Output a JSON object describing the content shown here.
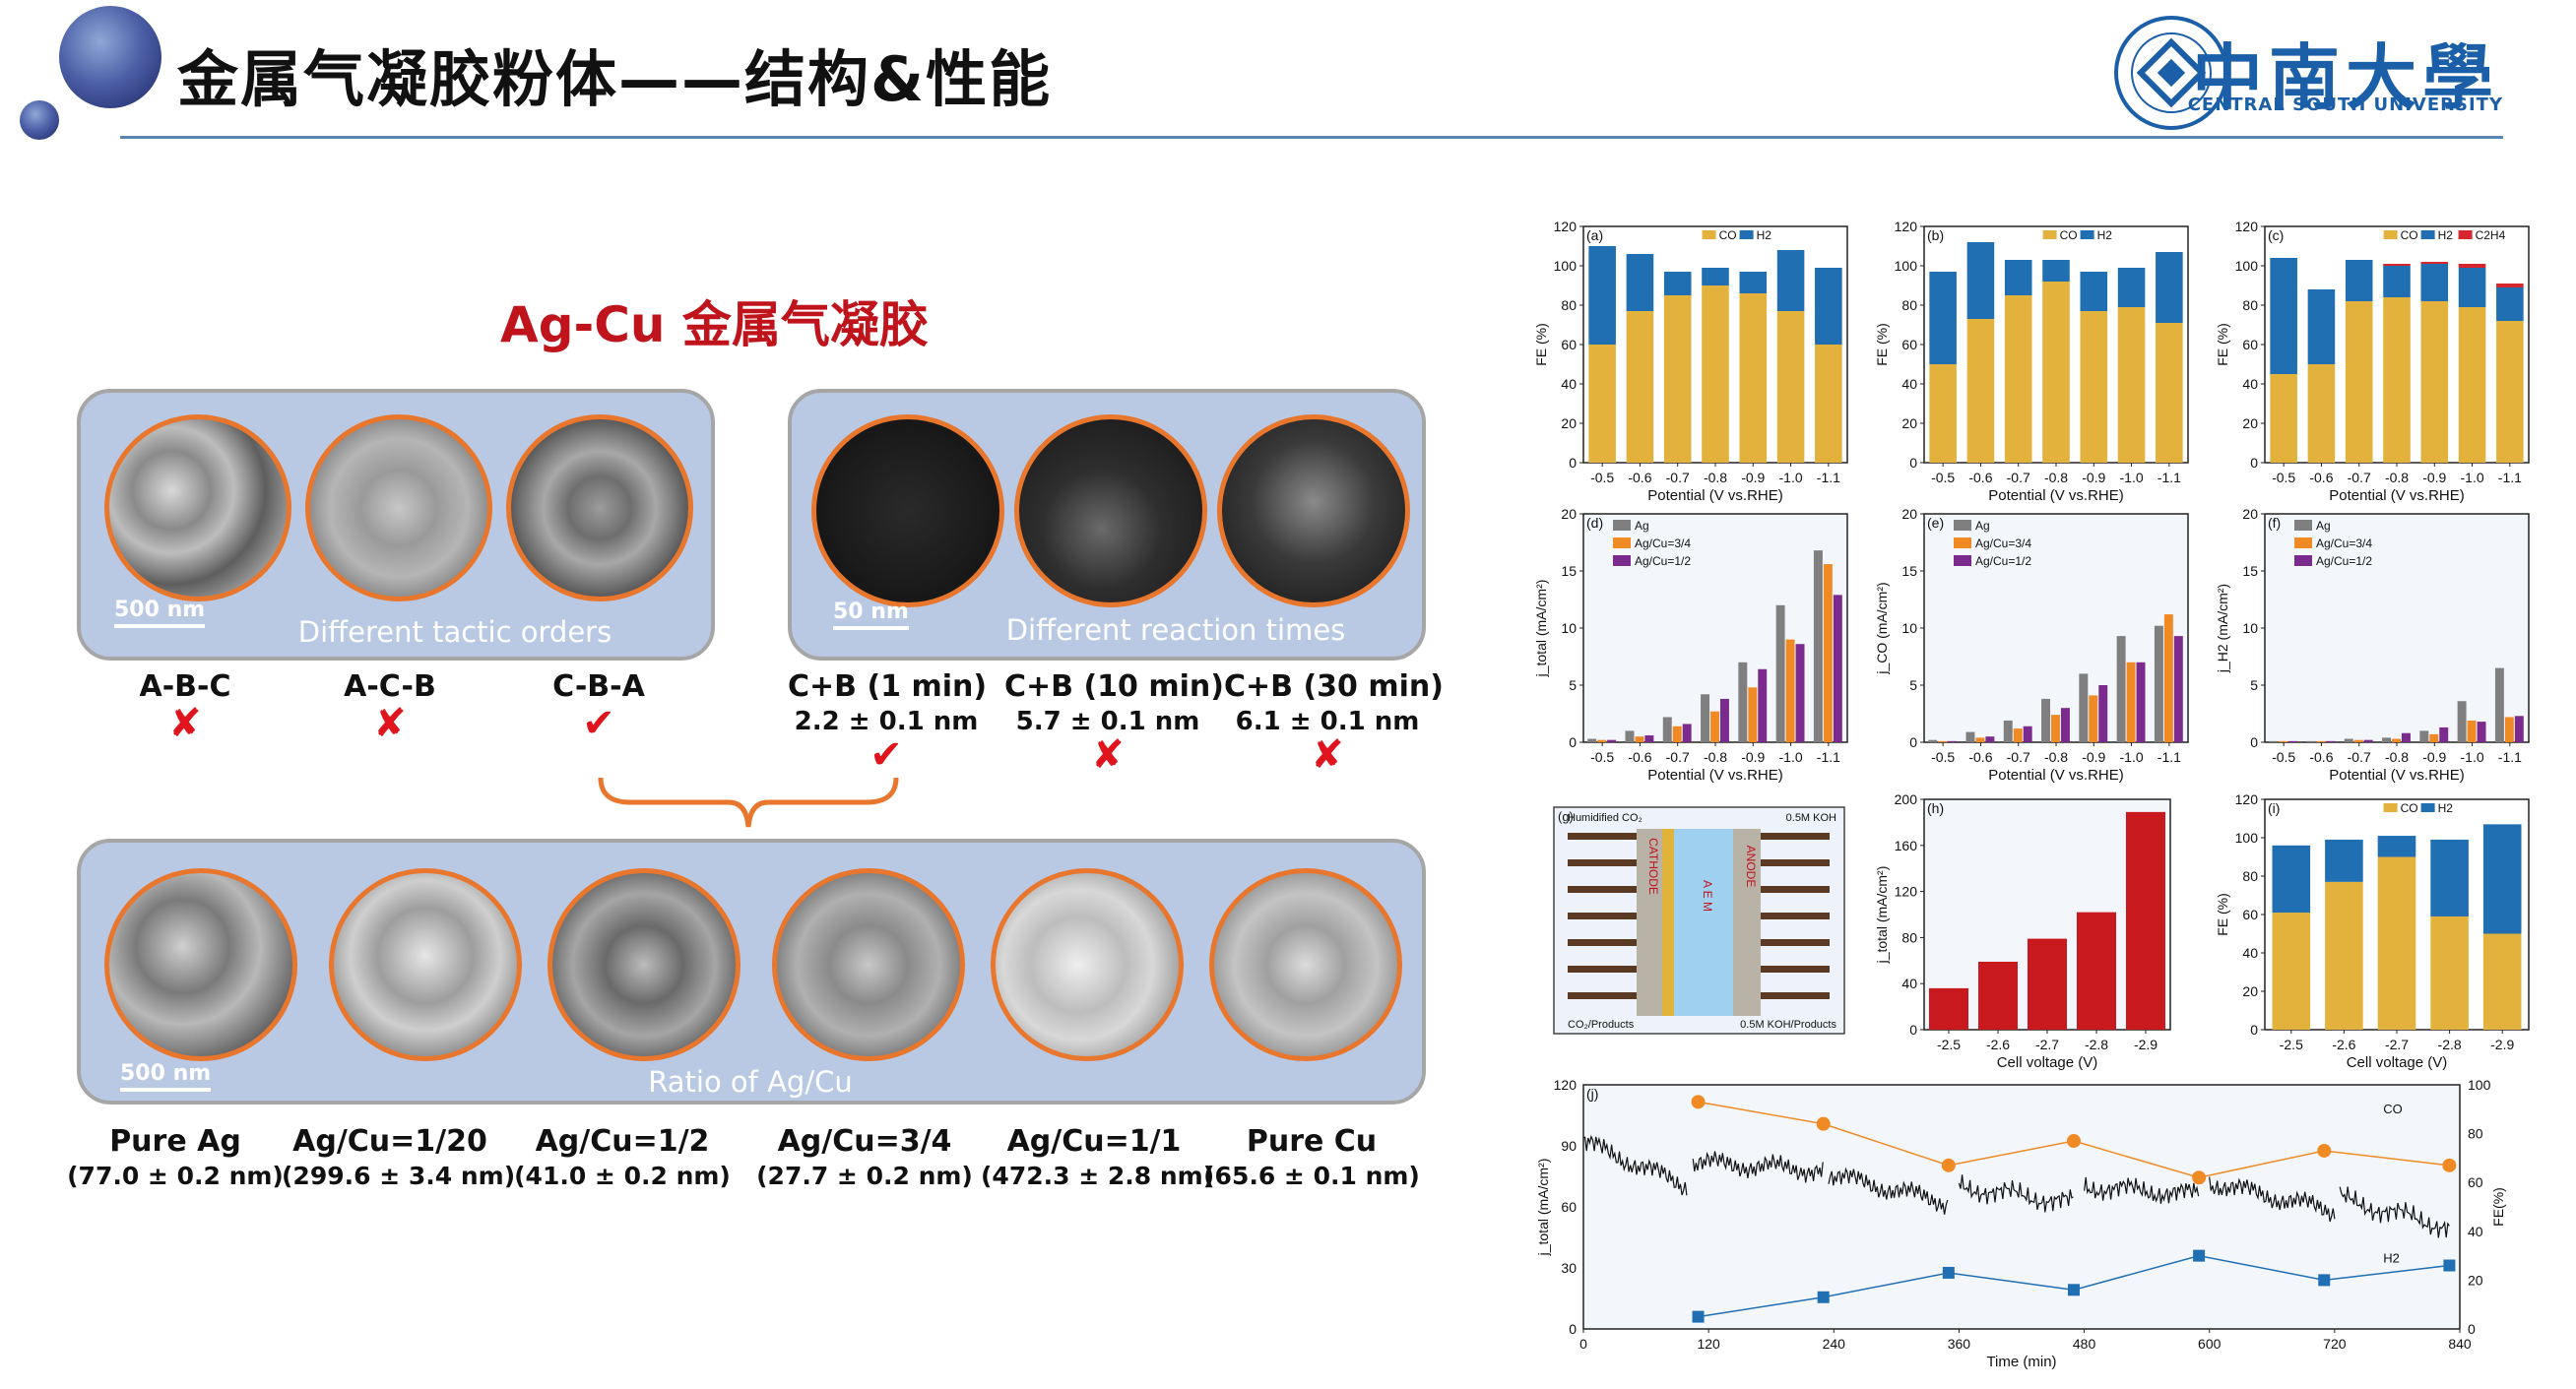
{
  "header": {
    "title": "金属气凝胶粉体——结构&性能",
    "university_name": "中南大學",
    "university_en": "CENTRAL SOUTH UNIVERSITY"
  },
  "subtitle": "Ag-Cu 金属气凝胶",
  "top_left_panel": {
    "label": "Different tactic orders",
    "scale": "500 nm"
  },
  "top_right_panel": {
    "label": "Different reaction times",
    "scale": "50 nm"
  },
  "bottom_panel": {
    "label": "Ratio of Ag/Cu",
    "scale": "500 nm"
  },
  "tactic_orders": [
    {
      "name": "A-B-C",
      "mark": "✘"
    },
    {
      "name": "A-C-B",
      "mark": "✘"
    },
    {
      "name": "C-B-A",
      "mark": "✔"
    }
  ],
  "reaction_times": [
    {
      "name": "C+B (1 min)",
      "value": "2.2 ± 0.1 nm",
      "mark": "✔"
    },
    {
      "name": "C+B (10 min)",
      "value": "5.7 ± 0.1 nm",
      "mark": "✘"
    },
    {
      "name": "C+B (30 min)",
      "value": "6.1 ± 0.1 nm",
      "mark": "✘"
    }
  ],
  "ratios": [
    {
      "name": "Pure Ag",
      "size": "(77.0 ± 0.2 nm)"
    },
    {
      "name": "Ag/Cu=1/20",
      "size": "(299.6 ± 3.4 nm)"
    },
    {
      "name": "Ag/Cu=1/2",
      "size": "(41.0 ± 0.2 nm)"
    },
    {
      "name": "Ag/Cu=3/4",
      "size": "(27.7 ± 0.2 nm)"
    },
    {
      "name": "Ag/Cu=1/1",
      "size": "(472.3 ± 2.8 nm)"
    },
    {
      "name": "Pure Cu",
      "size": "(65.6 ± 0.1 nm)"
    }
  ],
  "colors": {
    "CO": "#e3b23c",
    "H2": "#1f6fb2",
    "C2H4": "#d7262e",
    "Ag": "#7f7f7f",
    "AgCu34": "#f08a24",
    "AgCu12": "#7b2a8e",
    "cell": "#c8191e",
    "accent_orange": "#e8762c",
    "title_red": "#c0141c",
    "panel_blue": "#b9c9e4"
  },
  "chart_data": [
    {
      "panel": "(a)",
      "type": "bar",
      "xlabel": "Potential (V vs.RHE)",
      "ylabel": "FE (%)",
      "ylim": [
        0,
        120
      ],
      "categories": [
        "-0.5",
        "-0.6",
        "-0.7",
        "-0.8",
        "-0.9",
        "-1.0",
        "-1.1"
      ],
      "series": [
        {
          "name": "CO",
          "values": [
            60,
            77,
            85,
            90,
            86,
            77,
            60
          ]
        },
        {
          "name": "H2",
          "values": [
            50,
            29,
            12,
            9,
            11,
            31,
            39
          ]
        }
      ]
    },
    {
      "panel": "(b)",
      "type": "bar",
      "xlabel": "Potential (V vs.RHE)",
      "ylabel": "FE (%)",
      "ylim": [
        0,
        120
      ],
      "categories": [
        "-0.5",
        "-0.6",
        "-0.7",
        "-0.8",
        "-0.9",
        "-1.0",
        "-1.1"
      ],
      "series": [
        {
          "name": "CO",
          "values": [
            50,
            73,
            85,
            92,
            77,
            79,
            71
          ]
        },
        {
          "name": "H2",
          "values": [
            47,
            39,
            18,
            11,
            20,
            20,
            36
          ]
        }
      ]
    },
    {
      "panel": "(c)",
      "type": "bar",
      "xlabel": "Potential (V vs.RHE)",
      "ylabel": "FE (%)",
      "ylim": [
        0,
        120
      ],
      "categories": [
        "-0.5",
        "-0.6",
        "-0.7",
        "-0.8",
        "-0.9",
        "-1.0",
        "-1.1"
      ],
      "series": [
        {
          "name": "CO",
          "values": [
            45,
            50,
            82,
            84,
            82,
            79,
            72
          ]
        },
        {
          "name": "H2",
          "values": [
            59,
            38,
            21,
            16,
            19,
            20,
            17
          ]
        },
        {
          "name": "C2H4",
          "values": [
            0,
            0,
            0,
            1,
            1,
            2,
            2
          ]
        }
      ]
    },
    {
      "panel": "(d)",
      "type": "bar",
      "xlabel": "Potential (V vs.RHE)",
      "ylabel": "j_total (mA/cm²)",
      "ylim": [
        0,
        20
      ],
      "categories": [
        "-0.5",
        "-0.6",
        "-0.7",
        "-0.8",
        "-0.9",
        "-1.0",
        "-1.1"
      ],
      "series": [
        {
          "name": "Ag",
          "values": [
            0.3,
            1.0,
            2.2,
            4.2,
            7.0,
            12.0,
            16.8
          ]
        },
        {
          "name": "Ag/Cu=3/4",
          "values": [
            0.2,
            0.5,
            1.4,
            2.7,
            4.8,
            9.0,
            15.6
          ]
        },
        {
          "name": "Ag/Cu=1/2",
          "values": [
            0.2,
            0.6,
            1.6,
            3.8,
            6.4,
            8.6,
            12.9
          ]
        }
      ]
    },
    {
      "panel": "(e)",
      "type": "bar",
      "xlabel": "Potential (V vs.RHE)",
      "ylabel": "j_CO (mA/cm²)",
      "ylim": [
        0,
        20
      ],
      "categories": [
        "-0.5",
        "-0.6",
        "-0.7",
        "-0.8",
        "-0.9",
        "-1.0",
        "-1.1"
      ],
      "series": [
        {
          "name": "Ag",
          "values": [
            0.2,
            0.9,
            1.9,
            3.8,
            6.0,
            9.3,
            10.2
          ]
        },
        {
          "name": "Ag/Cu=3/4",
          "values": [
            0.1,
            0.4,
            1.2,
            2.4,
            4.1,
            7.0,
            11.2
          ]
        },
        {
          "name": "Ag/Cu=1/2",
          "values": [
            0.1,
            0.5,
            1.4,
            3.0,
            5.0,
            7.0,
            9.3
          ]
        }
      ]
    },
    {
      "panel": "(f)",
      "type": "bar",
      "xlabel": "Potential (V vs.RHE)",
      "ylabel": "j_H2 (mA/cm²)",
      "ylim": [
        0,
        20
      ],
      "categories": [
        "-0.5",
        "-0.6",
        "-0.7",
        "-0.8",
        "-0.9",
        "-1.0",
        "-1.1"
      ],
      "series": [
        {
          "name": "Ag",
          "values": [
            0.1,
            0.1,
            0.3,
            0.4,
            1.0,
            3.6,
            6.5
          ]
        },
        {
          "name": "Ag/Cu=3/4",
          "values": [
            0.1,
            0.1,
            0.2,
            0.3,
            0.7,
            1.9,
            2.2
          ]
        },
        {
          "name": "Ag/Cu=1/2",
          "values": [
            0.1,
            0.1,
            0.2,
            0.8,
            1.3,
            1.8,
            2.3
          ]
        }
      ]
    },
    {
      "panel": "(g)",
      "type": "diagram",
      "labels": [
        "Humidified CO₂",
        "0.5M KOH",
        "CATHODE",
        "A E M",
        "ANODE",
        "CO₂/Products",
        "0.5M KOH/Products"
      ]
    },
    {
      "panel": "(h)",
      "type": "bar",
      "xlabel": "Cell voltage (V)",
      "ylabel": "j_total (mA/cm²)",
      "ylim": [
        0,
        200
      ],
      "categories": [
        "-2.5",
        "-2.6",
        "-2.7",
        "-2.8",
        "-2.9"
      ],
      "values": [
        36,
        59,
        79,
        102,
        189
      ]
    },
    {
      "panel": "(i)",
      "type": "bar",
      "xlabel": "Cell voltage (V)",
      "ylabel": "FE (%)",
      "ylim": [
        0,
        120
      ],
      "categories": [
        "-2.5",
        "-2.6",
        "-2.7",
        "-2.8",
        "-2.9"
      ],
      "series": [
        {
          "name": "CO",
          "values": [
            61,
            77,
            90,
            59,
            50
          ]
        },
        {
          "name": "H2",
          "values": [
            35,
            22,
            11,
            40,
            57
          ]
        }
      ]
    },
    {
      "panel": "(j)",
      "type": "line",
      "xlabel": "Time (min)",
      "ylabel": "j_total (mA/cm²)",
      "y2label": "FE(%)",
      "xlim": [
        0,
        840
      ],
      "ylim": [
        0,
        120
      ],
      "y2lim": [
        0,
        100
      ],
      "x_ticks": [
        "0",
        "120",
        "240",
        "360",
        "480",
        "600",
        "720",
        "840"
      ],
      "y_ticks": [
        "0",
        "30",
        "60",
        "90",
        "120"
      ],
      "y2_ticks": [
        "0",
        "20",
        "40",
        "60",
        "80",
        "100"
      ],
      "series": [
        {
          "name": "CO",
          "x": [
            110,
            230,
            350,
            470,
            590,
            710,
            830
          ],
          "values": [
            93,
            84,
            67,
            77,
            62,
            73,
            67
          ]
        },
        {
          "name": "H2",
          "x": [
            110,
            230,
            350,
            470,
            590,
            710,
            830
          ],
          "values": [
            5,
            13,
            23,
            16,
            30,
            20,
            26
          ]
        }
      ]
    }
  ]
}
